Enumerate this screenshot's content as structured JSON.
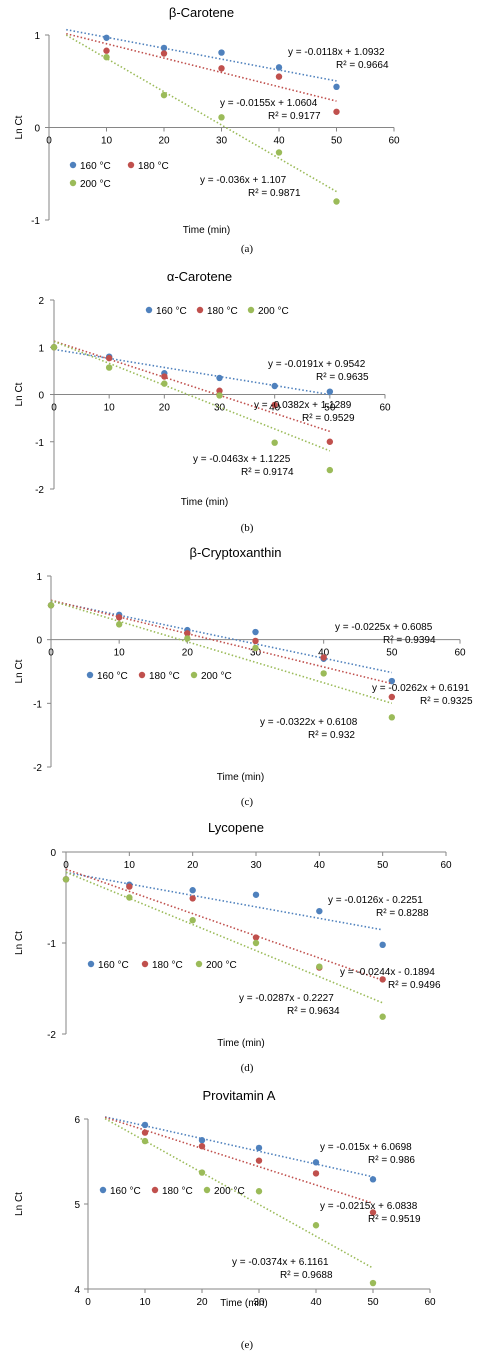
{
  "chart_data": [
    {
      "type": "scatter",
      "title": "β-Carotene",
      "xlabel": "Time (min)",
      "ylabel": "Ln Ct",
      "xlim": [
        0,
        60
      ],
      "ylim": [
        -1,
        1
      ],
      "xticks": [
        "0",
        "10",
        "20",
        "30",
        "40",
        "50",
        "60"
      ],
      "yticks": [
        "1",
        "0",
        "-1"
      ],
      "legend_position": "left",
      "caption": "(a)",
      "series": [
        {
          "name": "160 °C",
          "color": "#4f81bd",
          "x": [
            10,
            20,
            30,
            40,
            50
          ],
          "y": [
            0.97,
            0.86,
            0.81,
            0.65,
            0.44
          ],
          "trend": {
            "slope": -0.0118,
            "intercept": 1.0932,
            "x_range": [
              3,
              50
            ],
            "equation": "y = -0.0118x + 1.0932",
            "r2": "R² = 0.9664"
          }
        },
        {
          "name": "180 °C",
          "color": "#c0504d",
          "x": [
            10,
            20,
            30,
            40,
            50
          ],
          "y": [
            0.83,
            0.8,
            0.64,
            0.55,
            0.17
          ],
          "trend": {
            "slope": -0.0155,
            "intercept": 1.0604,
            "x_range": [
              3,
              50
            ],
            "equation": "y = -0.0155x + 1.0604",
            "r2": "R² = 0.9177"
          }
        },
        {
          "name": "200 °C",
          "color": "#9bbb59",
          "x": [
            10,
            20,
            30,
            40,
            50
          ],
          "y": [
            0.76,
            0.35,
            0.11,
            -0.27,
            -0.8
          ],
          "trend": {
            "slope": -0.036,
            "intercept": 1.107,
            "x_range": [
              3,
              50
            ],
            "equation": "y = -0.036x + 1.107",
            "r2": "R² = 0.9871"
          }
        }
      ]
    },
    {
      "type": "scatter",
      "title": "α-Carotene",
      "xlabel": "Time (min)",
      "ylabel": "Ln Ct",
      "xlim": [
        0,
        60
      ],
      "ylim": [
        -2,
        2
      ],
      "xticks": [
        "0",
        "10",
        "20",
        "30",
        "40",
        "50",
        "60"
      ],
      "yticks": [
        "2",
        "1",
        "0",
        "-1",
        "-2"
      ],
      "legend_position": "top",
      "caption": "(b)",
      "series": [
        {
          "name": "160 °C",
          "color": "#4f81bd",
          "x": [
            0,
            10,
            20,
            30,
            40,
            50
          ],
          "y": [
            1.0,
            0.8,
            0.45,
            0.35,
            0.18,
            0.06
          ],
          "trend": {
            "slope": -0.0191,
            "intercept": 0.9542,
            "x_range": [
              0,
              50
            ],
            "equation": "y = -0.0191x + 0.9542",
            "r2": "R² = 0.9635"
          }
        },
        {
          "name": "180 °C",
          "color": "#c0504d",
          "x": [
            0,
            10,
            20,
            30,
            40,
            50
          ],
          "y": [
            1.0,
            0.77,
            0.38,
            0.08,
            -0.22,
            -1.0
          ],
          "trend": {
            "slope": -0.0382,
            "intercept": 1.1289,
            "x_range": [
              0,
              50
            ],
            "equation": "y = -0.0382x + 1.1289",
            "r2": "R² = 0.9529"
          }
        },
        {
          "name": "200 °C",
          "color": "#9bbb59",
          "x": [
            0,
            10,
            20,
            30,
            40,
            50
          ],
          "y": [
            1.0,
            0.57,
            0.23,
            -0.02,
            -1.02,
            -1.6
          ],
          "trend": {
            "slope": -0.0463,
            "intercept": 1.1225,
            "x_range": [
              0,
              50
            ],
            "equation": "y = -0.0463x + 1.1225",
            "r2": "R² = 0.9174"
          }
        }
      ]
    },
    {
      "type": "scatter",
      "title": "β-Cryptoxanthin",
      "xlabel": "Time (min)",
      "ylabel": "Ln Ct",
      "xlim": [
        0,
        60
      ],
      "ylim": [
        -2,
        1
      ],
      "xticks": [
        "0",
        "10",
        "20",
        "30",
        "40",
        "50",
        "60"
      ],
      "yticks": [
        "1",
        "0",
        "-1",
        "-2"
      ],
      "legend_position": "left",
      "caption": "(c)",
      "series": [
        {
          "name": "160 °C",
          "color": "#4f81bd",
          "x": [
            0,
            10,
            20,
            30,
            40,
            50
          ],
          "y": [
            0.54,
            0.39,
            0.15,
            0.12,
            -0.3,
            -0.65
          ],
          "trend": {
            "slope": -0.0225,
            "intercept": 0.6085,
            "x_range": [
              0,
              50
            ],
            "equation": "y = -0.0225x + 0.6085",
            "r2": "R² = 0.9394"
          }
        },
        {
          "name": "180 °C",
          "color": "#c0504d",
          "x": [
            0,
            10,
            20,
            30,
            40,
            50
          ],
          "y": [
            0.54,
            0.35,
            0.1,
            -0.02,
            -0.28,
            -0.9
          ],
          "trend": {
            "slope": -0.0262,
            "intercept": 0.6191,
            "x_range": [
              0,
              50
            ],
            "equation": "y = -0.0262x + 0.6191",
            "r2": "R² = 0.9325"
          }
        },
        {
          "name": "200 °C",
          "color": "#9bbb59",
          "x": [
            0,
            10,
            20,
            30,
            40,
            50
          ],
          "y": [
            0.54,
            0.24,
            0.02,
            -0.13,
            -0.53,
            -1.22
          ],
          "trend": {
            "slope": -0.0322,
            "intercept": 0.6108,
            "x_range": [
              0,
              50
            ],
            "equation": "y = -0.0322x + 0.6108",
            "r2": "R² = 0.932"
          }
        }
      ]
    },
    {
      "type": "scatter",
      "title": "Lycopene",
      "xlabel": "Time (min)",
      "ylabel": "Ln Ct",
      "xlim": [
        0,
        60
      ],
      "ylim": [
        -2,
        0
      ],
      "xticks": [
        "0",
        "10",
        "20",
        "30",
        "40",
        "50",
        "60"
      ],
      "yticks": [
        "0",
        "-1",
        "-2"
      ],
      "legend_position": "left",
      "caption": "(d)",
      "series": [
        {
          "name": "160 °C",
          "color": "#4f81bd",
          "x": [
            0,
            10,
            20,
            30,
            40,
            50
          ],
          "y": [
            -0.3,
            -0.36,
            -0.42,
            -0.47,
            -0.65,
            -1.02
          ],
          "trend": {
            "slope": -0.0126,
            "intercept": -0.2251,
            "x_range": [
              0,
              50
            ],
            "equation": "y = -0.0126x - 0.2251",
            "r2": "R² = 0.8288"
          }
        },
        {
          "name": "180 °C",
          "color": "#c0504d",
          "x": [
            0,
            10,
            20,
            30,
            40,
            50
          ],
          "y": [
            -0.3,
            -0.38,
            -0.51,
            -0.94,
            -1.27,
            -1.4
          ],
          "trend": {
            "slope": -0.0244,
            "intercept": -0.1894,
            "x_range": [
              0,
              50
            ],
            "equation": "y = -0.0244x - 0.1894",
            "r2": "R² = 0.9496"
          }
        },
        {
          "name": "200 °C",
          "color": "#9bbb59",
          "x": [
            0,
            10,
            20,
            30,
            40,
            50
          ],
          "y": [
            -0.3,
            -0.5,
            -0.75,
            -1.0,
            -1.26,
            -1.81
          ],
          "trend": {
            "slope": -0.0287,
            "intercept": -0.2227,
            "x_range": [
              0,
              50
            ],
            "equation": "y = -0.0287x - 0.2227",
            "r2": "R² = 0.9634"
          }
        }
      ]
    },
    {
      "type": "scatter",
      "title": "Provitamin A",
      "xlabel": "Time (min)",
      "ylabel": "Ln Ct",
      "xlim": [
        0,
        60
      ],
      "ylim": [
        4,
        6
      ],
      "xticks": [
        "0",
        "10",
        "20",
        "30",
        "40",
        "50",
        "60"
      ],
      "yticks": [
        "6",
        "5",
        "4"
      ],
      "legend_position": "left",
      "caption": "(e)",
      "series": [
        {
          "name": "160 °C",
          "color": "#4f81bd",
          "x": [
            10,
            20,
            30,
            40,
            50
          ],
          "y": [
            5.93,
            5.75,
            5.66,
            5.49,
            5.29
          ],
          "trend": {
            "slope": -0.015,
            "intercept": 6.0698,
            "x_range": [
              3,
              50
            ],
            "equation": "y = -0.015x + 6.0698",
            "r2": "R² = 0.986"
          }
        },
        {
          "name": "180 °C",
          "color": "#c0504d",
          "x": [
            10,
            20,
            30,
            40,
            50
          ],
          "y": [
            5.84,
            5.68,
            5.51,
            5.36,
            4.9
          ],
          "trend": {
            "slope": -0.0215,
            "intercept": 6.0838,
            "x_range": [
              3,
              50
            ],
            "equation": "y = -0.0215x + 6.0838",
            "r2": "R² = 0.9519"
          }
        },
        {
          "name": "200 °C",
          "color": "#9bbb59",
          "x": [
            10,
            20,
            30,
            40,
            50
          ],
          "y": [
            5.74,
            5.37,
            5.15,
            4.75,
            4.07
          ],
          "trend": {
            "slope": -0.0374,
            "intercept": 6.1161,
            "x_range": [
              3,
              50
            ],
            "equation": "y = -0.0374x + 6.1161",
            "r2": "R² = 0.9688"
          }
        }
      ]
    }
  ]
}
